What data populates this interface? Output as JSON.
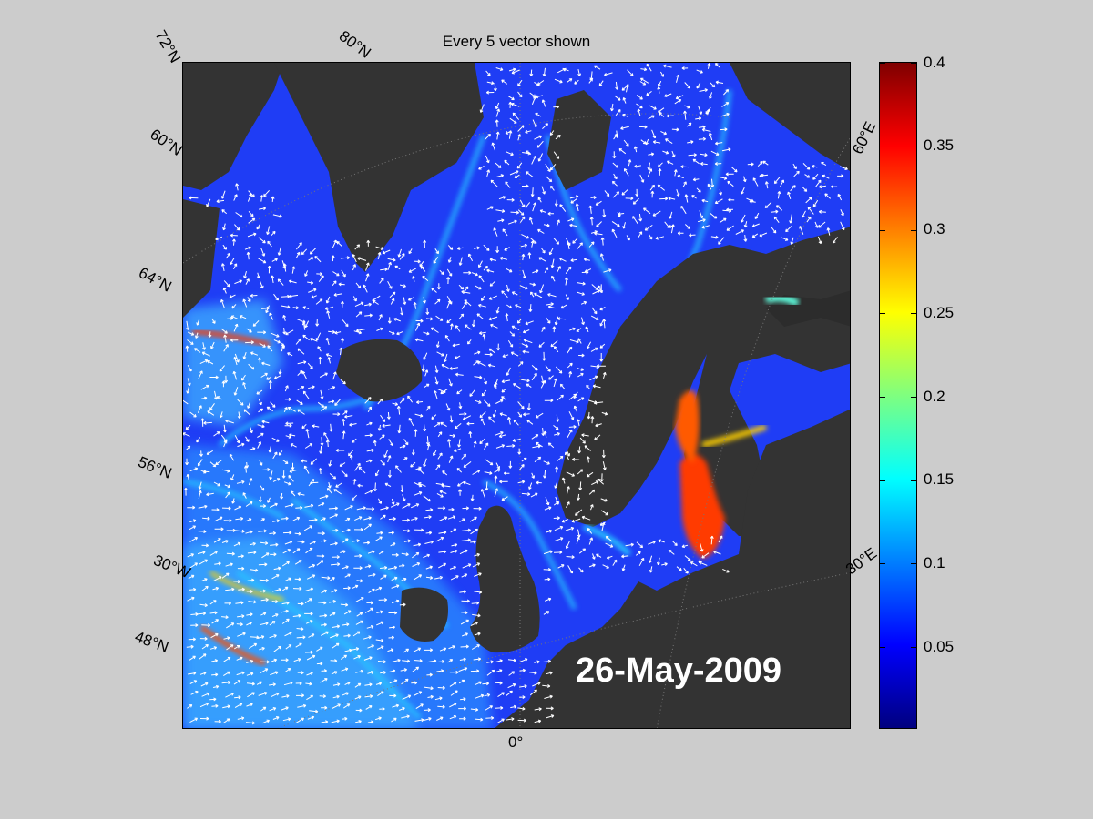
{
  "title": "Every 5 vector shown",
  "date_label": "26-May-2009",
  "lat_labels": [
    "72°N",
    "60°N",
    "64°N",
    "56°N",
    "48°N"
  ],
  "lon_labels": [
    "80°N",
    "30°W",
    "0°",
    "30°E",
    "60°E"
  ],
  "colorbar": {
    "ticks": [
      "0.4",
      "0.35",
      "0.3",
      "0.25",
      "0.2",
      "0.15",
      "0.1",
      "0.05"
    ],
    "range": [
      0,
      0.4
    ],
    "colormap": "jet"
  },
  "colors": {
    "background": "#cccccc",
    "land": "#333333",
    "ocean": "#1a3cff",
    "vectors": "#ffffff"
  }
}
